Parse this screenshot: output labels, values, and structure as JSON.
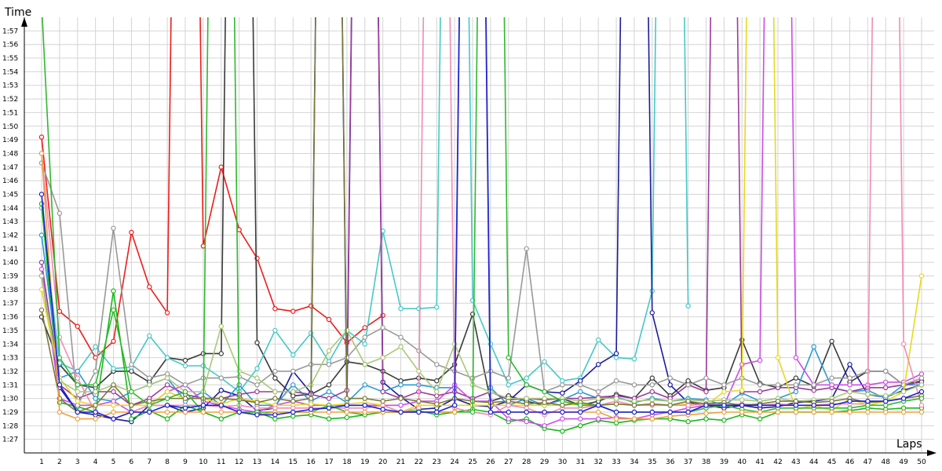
{
  "chart_data": {
    "type": "line",
    "ylabel": "Time",
    "xlabel": "Laps",
    "x": [
      1,
      2,
      3,
      4,
      5,
      6,
      7,
      8,
      9,
      10,
      11,
      12,
      13,
      14,
      15,
      16,
      17,
      18,
      19,
      20,
      21,
      22,
      23,
      24,
      25,
      26,
      27,
      28,
      29,
      30,
      31,
      32,
      33,
      34,
      35,
      36,
      37,
      38,
      39,
      40,
      41,
      42,
      43,
      44,
      45,
      46,
      47,
      48,
      49,
      50
    ],
    "xlim": [
      1,
      50
    ],
    "ylim": [
      "1:27",
      "1:58"
    ],
    "y_ticks": [
      "1:27",
      "1:28",
      "1:29",
      "1:30",
      "1:31",
      "1:32",
      "1:33",
      "1:34",
      "1:35",
      "1:36",
      "1:37",
      "1:38",
      "1:39",
      "1:40",
      "1:41",
      "1:42",
      "1:43",
      "1:44",
      "1:45",
      "1:46",
      "1:47",
      "1:48",
      "1:49",
      "1:50",
      "1:51",
      "1:52",
      "1:53",
      "1:54",
      "1:55",
      "1:56",
      "1:57"
    ],
    "grid": true,
    "legend": "none",
    "series": [
      {
        "color": "#ee1c1c",
        "values": [
          109.2,
          96.4,
          95.3,
          93.0,
          94.2,
          102.2,
          98.2,
          96.3,
          200,
          101.2,
          107.0,
          102.4,
          100.3,
          96.6,
          96.4,
          96.8,
          95.8,
          94.1,
          95.2,
          96.1,
          null,
          null,
          null,
          null,
          null,
          null,
          null,
          null,
          null,
          null,
          null,
          null,
          null,
          null,
          null,
          null,
          null,
          null,
          null,
          null,
          null,
          null,
          null,
          null,
          null,
          null,
          null,
          null,
          null,
          null
        ]
      },
      {
        "color": "#3a3a3a",
        "values": [
          96.0,
          92.5,
          91.0,
          90.8,
          92.0,
          92.0,
          91.2,
          93.0,
          92.8,
          93.3,
          93.3,
          200,
          94.1,
          91.5,
          90.2,
          90.3,
          91.0,
          92.7,
          92.5,
          92.0,
          91.3,
          91.5,
          91.3,
          92.5,
          96.2,
          89.8,
          90.2,
          89.8,
          89.5,
          90.0,
          89.5,
          89.8,
          90.3,
          90.0,
          91.5,
          90.2,
          91.3,
          90.6,
          90.8,
          94.3,
          91.1,
          90.8,
          91.5,
          90.9,
          94.2,
          91.2,
          92.0,
          92.0,
          91.0,
          91.3
        ]
      },
      {
        "color": "#46c8c8",
        "values": [
          104.0,
          92.6,
          92.0,
          93.8,
          92.2,
          92.3,
          94.6,
          93.0,
          92.4,
          92.4,
          91.5,
          90.5,
          92.2,
          95.0,
          93.2,
          94.8,
          92.7,
          95.0,
          94.0,
          102.3,
          96.6,
          96.6,
          96.7,
          200,
          97.2,
          94.0,
          91.0,
          91.5,
          92.7,
          91.3,
          91.5,
          94.3,
          93.0,
          92.9,
          97.9,
          200,
          96.8,
          null,
          null,
          null,
          null,
          null,
          null,
          null,
          null,
          null,
          null,
          null,
          null,
          null
        ]
      },
      {
        "color": "#1c1c9c",
        "values": [
          99.0,
          90.8,
          89.0,
          88.8,
          88.5,
          88.3,
          89.5,
          89.5,
          89.0,
          89.3,
          90.6,
          90.2,
          89.1,
          89.3,
          92.0,
          90.4,
          200,
          89.5,
          200,
          91.2,
          90.1,
          89.2,
          89.3,
          90.0,
          89.5,
          89.4,
          89.8,
          91.0,
          90.5,
          90.4,
          91.3,
          92.5,
          93.3,
          200,
          96.3,
          91.0,
          89.7,
          89.5,
          89.3,
          89.5,
          89.3,
          89.4,
          89.7,
          89.8,
          90.0,
          92.5,
          90.3,
          90.1,
          90.6,
          91.0
        ]
      },
      {
        "color": "#1ab81a",
        "values": [
          104.3,
          89.7,
          89.4,
          89.0,
          97.9,
          88.5,
          89.1,
          88.5,
          89.5,
          89.0,
          88.5,
          89.0,
          89.0,
          88.5,
          88.7,
          88.8,
          88.5,
          88.6,
          88.8,
          89.0,
          89.0,
          89.1,
          88.8,
          89.0,
          89.2,
          89.0,
          88.3,
          88.5,
          87.8,
          87.6,
          88.0,
          88.4,
          88.2,
          88.4,
          88.5,
          88.5,
          88.3,
          88.5,
          88.4,
          88.8,
          88.5,
          89.0,
          89.0,
          89.0,
          89.0,
          89.1,
          89.3,
          89.2,
          89.3,
          89.3
        ]
      },
      {
        "color": "#2a9bd6",
        "values": [
          102.0,
          91.5,
          92.0,
          90.0,
          89.8,
          90.5,
          91.0,
          91.5,
          89.8,
          90.5,
          89.5,
          91.0,
          89.5,
          89.5,
          91.0,
          89.8,
          90.5,
          89.7,
          91.0,
          90.5,
          91.0,
          91.0,
          90.8,
          90.8,
          200,
          90.8,
          89.5,
          90.0,
          89.5,
          89.9,
          90.5,
          90.0,
          90.1,
          89.7,
          90.0,
          89.8,
          90.0,
          89.9,
          89.5,
          90.4,
          89.8,
          90.0,
          90.5,
          93.8,
          90.8,
          90.5,
          90.6,
          90.0,
          91.0,
          91.0
        ]
      },
      {
        "color": "#9c3a9c",
        "values": [
          100.0,
          91.0,
          90.0,
          90.5,
          90.5,
          89.5,
          90.0,
          91.0,
          90.3,
          90.0,
          90.0,
          90.3,
          90.5,
          90.5,
          90.5,
          90.3,
          90.0,
          90.6,
          200,
          90.5,
          90.0,
          90.5,
          90.2,
          90.5,
          90.0,
          90.5,
          89.9,
          90.0,
          89.9,
          90.0,
          90.0,
          90.1,
          90.2,
          90.0,
          90.5,
          90.0,
          91.0,
          90.5,
          200,
          90.5,
          90.5,
          90.8,
          90.8,
          90.6,
          90.8,
          90.5,
          90.8,
          90.8,
          91.0,
          91.2
        ]
      },
      {
        "color": "#cc4ce8",
        "values": [
          99.5,
          90.0,
          89.5,
          89.5,
          89.8,
          89.0,
          89.5,
          90.5,
          91.0,
          89.8,
          89.5,
          89.2,
          89.0,
          89.5,
          89.8,
          89.5,
          89.5,
          89.5,
          89.5,
          89.5,
          89.5,
          89.8,
          89.8,
          91.0,
          89.8,
          89.8,
          88.5,
          88.3,
          88.0,
          88.5,
          88.5,
          88.5,
          88.6,
          88.5,
          88.8,
          89.0,
          89.3,
          89.5,
          89.5,
          92.5,
          92.8,
          200,
          93.0,
          91.0,
          91.0,
          91.0,
          91.0,
          91.2,
          91.2,
          91.8
        ]
      },
      {
        "color": "#999999",
        "values": [
          107.3,
          103.6,
          89.5,
          92.0,
          102.5,
          92.5,
          91.5,
          91.8,
          91.0,
          91.5,
          91.5,
          91.6,
          91.0,
          92.0,
          92.0,
          92.5,
          92.5,
          93.0,
          94.5,
          95.2,
          94.5,
          93.5,
          92.5,
          92.0,
          91.5,
          92.0,
          91.5,
          101.0,
          90.5,
          91.0,
          91.0,
          90.5,
          91.3,
          91.0,
          91.0,
          91.5,
          91.0,
          91.5,
          91.0,
          91.5,
          91.0,
          91.0,
          91.0,
          91.0,
          91.5,
          91.5,
          92.0,
          92.0,
          91.0,
          91.5
        ]
      },
      {
        "color": "#e8d820",
        "values": [
          98.0,
          91.5,
          89.8,
          89.5,
          89.5,
          89.5,
          89.5,
          90.5,
          90.0,
          90.0,
          89.6,
          90.0,
          89.8,
          89.5,
          89.5,
          89.6,
          89.5,
          89.6,
          89.7,
          89.5,
          89.0,
          89.5,
          89.5,
          89.5,
          89.5,
          89.5,
          89.5,
          89.5,
          89.5,
          89.5,
          89.6,
          89.5,
          89.6,
          89.5,
          89.6,
          89.5,
          89.6,
          89.5,
          90.5,
          90.6,
          200,
          93.0,
          89.2,
          89.5,
          89.1,
          90.0,
          89.5,
          89.8,
          90.5,
          99.0
        ]
      },
      {
        "color": "#f08cb4",
        "values": [
          108.0,
          94.5,
          91.5,
          89.0,
          88.5,
          89.0,
          89.5,
          89.5,
          89.5,
          89.5,
          89.4,
          89.5,
          89.3,
          89.3,
          89.3,
          89.3,
          89.3,
          89.3,
          89.3,
          89.5,
          89.0,
          89.3,
          200,
          89.3,
          89.0,
          88.8,
          89.5,
          89.3,
          88.8,
          89.3,
          89.3,
          89.5,
          89.8,
          89.5,
          89.5,
          89.5,
          89.5,
          89.6,
          89.5,
          89.6,
          89.5,
          89.6,
          89.5,
          89.5,
          89.6,
          89.6,
          89.6,
          200,
          94.0,
          89.5
        ]
      },
      {
        "color": "#a8c878",
        "values": [
          99.0,
          91.3,
          90.5,
          90.5,
          91.0,
          90.5,
          91.0,
          91.5,
          90.5,
          90.5,
          95.3,
          92.0,
          91.5,
          90.5,
          90.5,
          91.0,
          93.5,
          95.0,
          92.5,
          93.0,
          93.8,
          92.0,
          90.5,
          94.0,
          91.0,
          90.5,
          90.0,
          90.0,
          90.0,
          90.0,
          89.8,
          90.0,
          90.0,
          89.8,
          89.9,
          89.8,
          89.9,
          89.8,
          89.9,
          89.9,
          89.8,
          90.0,
          89.8,
          89.9,
          90.0,
          90.5,
          90.3,
          90.2,
          90.5,
          91.0
        ]
      },
      {
        "color": "#7a7a3a",
        "values": [
          96.5,
          90.0,
          89.0,
          89.5,
          91.0,
          89.5,
          89.8,
          90.0,
          90.0,
          90.0,
          90.0,
          89.9,
          89.7,
          90.0,
          89.8,
          90.0,
          200,
          90.0,
          90.0,
          89.8,
          90.0,
          89.8,
          89.6,
          90.0,
          89.8,
          89.7,
          89.8,
          89.6,
          89.7,
          89.5,
          89.7,
          89.5,
          89.6,
          89.5,
          89.6,
          89.5,
          89.8,
          89.6,
          89.7,
          89.5,
          89.6,
          89.8,
          89.8,
          89.7,
          89.8,
          90.0,
          89.7,
          89.8,
          90.0,
          90.2
        ]
      },
      {
        "color": "#30b830",
        "values": [
          119.0,
          93.0,
          91.0,
          91.0,
          96.5,
          90.5,
          89.5,
          90.0,
          90.5,
          89.0,
          200,
          89.0,
          89.0,
          89.0,
          89.0,
          89.0,
          89.5,
          89.0,
          88.8,
          89.0,
          89.0,
          89.0,
          89.0,
          89.0,
          89.0,
          200,
          93.0,
          91.0,
          90.5,
          89.8,
          89.5,
          89.5,
          89.0,
          89.0,
          89.0,
          89.0,
          89.0,
          89.3,
          89.5,
          89.2,
          89.0,
          89.3,
          89.3,
          89.3,
          89.3,
          89.3,
          89.5,
          89.5,
          89.8,
          90.0
        ]
      },
      {
        "color": "#f0a040",
        "values": [
          108.0,
          89.0,
          88.5,
          88.5,
          89.0,
          89.0,
          89.0,
          89.0,
          89.0,
          89.0,
          89.0,
          89.0,
          88.8,
          89.0,
          89.0,
          89.0,
          89.0,
          89.0,
          89.0,
          89.0,
          89.0,
          89.0,
          89.0,
          89.0,
          200,
          89.0,
          89.0,
          89.0,
          89.0,
          89.0,
          89.0,
          89.0,
          88.5,
          88.5,
          88.5,
          88.7,
          88.8,
          88.9,
          89.0,
          89.0,
          89.0,
          89.0,
          89.0,
          89.0,
          89.0,
          89.0,
          89.0,
          89.0,
          89.0,
          89.0
        ]
      },
      {
        "color": "#1e1ed8",
        "values": [
          105.0,
          91.0,
          89.0,
          89.0,
          88.5,
          89.0,
          89.0,
          89.5,
          89.3,
          89.5,
          89.5,
          89.0,
          88.8,
          88.8,
          89.0,
          89.2,
          89.3,
          89.5,
          89.5,
          89.2,
          89.0,
          89.0,
          89.0,
          89.5,
          200,
          89.0,
          89.0,
          89.0,
          89.0,
          89.0,
          89.0,
          89.5,
          89.0,
          89.0,
          89.0,
          89.0,
          89.0,
          89.5,
          89.5,
          89.5,
          89.5,
          89.5,
          89.5,
          89.5,
          89.5,
          89.8,
          89.8,
          89.8,
          90.0,
          90.5
        ]
      }
    ]
  }
}
